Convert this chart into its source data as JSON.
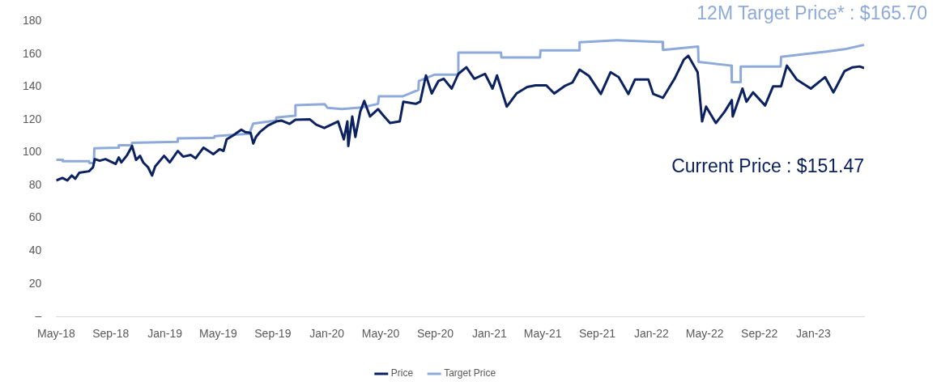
{
  "chart_data": {
    "type": "line",
    "legend": "bottom",
    "grid": false,
    "marker": "none",
    "line_style": "solid",
    "xlim": [
      "2018-05-01",
      "2023-04-25"
    ],
    "xticks": [
      {
        "value": "2018-05-01",
        "label": "May-18"
      },
      {
        "value": "2018-09-01",
        "label": "Sep-18"
      },
      {
        "value": "2019-01-01",
        "label": "Jan-19"
      },
      {
        "value": "2019-05-01",
        "label": "May-19"
      },
      {
        "value": "2019-09-01",
        "label": "Sep-19"
      },
      {
        "value": "2020-01-01",
        "label": "Jan-20"
      },
      {
        "value": "2020-05-01",
        "label": "May-20"
      },
      {
        "value": "2020-09-01",
        "label": "Sep-20"
      },
      {
        "value": "2021-01-01",
        "label": "Jan-21"
      },
      {
        "value": "2021-05-01",
        "label": "May-21"
      },
      {
        "value": "2021-09-01",
        "label": "Sep-21"
      },
      {
        "value": "2022-01-01",
        "label": "Jan-22"
      },
      {
        "value": "2022-05-01",
        "label": "May-22"
      },
      {
        "value": "2022-09-01",
        "label": "Sep-22"
      },
      {
        "value": "2023-01-01",
        "label": "Jan-23"
      }
    ],
    "ylim": [
      0,
      180
    ],
    "yticks": [
      {
        "value": 0,
        "label": "–"
      },
      20,
      40,
      60,
      80,
      100,
      120,
      140,
      160,
      180
    ],
    "series": [
      {
        "name": "Price",
        "color": "#0b2160",
        "x": [
          "2018-05-01",
          "2018-05-15",
          "2018-05-26",
          "2018-06-05",
          "2018-06-13",
          "2018-06-22",
          "2018-07-14",
          "2018-07-23",
          "2018-07-27",
          "2018-08-07",
          "2018-08-20",
          "2018-09-12",
          "2018-09-19",
          "2018-09-25",
          "2018-10-08",
          "2018-10-19",
          "2018-10-28",
          "2018-11-06",
          "2018-11-13",
          "2018-11-24",
          "2018-12-03",
          "2018-12-10",
          "2018-12-30",
          "2019-01-12",
          "2019-01-30",
          "2019-02-11",
          "2019-02-28",
          "2019-03-11",
          "2019-03-29",
          "2019-04-20",
          "2019-05-04",
          "2019-05-13",
          "2019-05-20",
          "2019-06-04",
          "2019-06-22",
          "2019-07-01",
          "2019-07-13",
          "2019-07-19",
          "2019-07-25",
          "2019-08-03",
          "2019-08-21",
          "2019-09-09",
          "2019-09-21",
          "2019-10-09",
          "2019-10-22",
          "2019-11-23",
          "2019-12-08",
          "2019-12-26",
          "2020-01-26",
          "2020-02-08",
          "2020-02-16",
          "2020-02-18",
          "2020-02-27",
          "2020-03-05",
          "2020-03-16",
          "2020-03-25",
          "2020-04-07",
          "2020-04-25",
          "2020-05-07",
          "2020-05-22",
          "2020-06-13",
          "2020-06-21",
          "2020-07-19",
          "2020-07-29",
          "2020-08-11",
          "2020-08-24",
          "2020-09-08",
          "2020-09-20",
          "2020-10-08",
          "2020-10-23",
          "2020-11-10",
          "2020-11-28",
          "2020-12-22",
          "2021-01-08",
          "2021-01-18",
          "2021-02-09",
          "2021-03-03",
          "2021-03-27",
          "2021-04-15",
          "2021-05-09",
          "2021-05-27",
          "2021-06-19",
          "2021-07-07",
          "2021-07-23",
          "2021-08-13",
          "2021-09-09",
          "2021-10-01",
          "2021-10-19",
          "2021-11-10",
          "2021-11-25",
          "2021-12-25",
          "2022-01-05",
          "2022-01-27",
          "2022-02-22",
          "2022-03-15",
          "2022-03-25",
          "2022-04-15",
          "2022-04-25",
          "2022-05-04",
          "2022-05-26",
          "2022-06-15",
          "2022-07-01",
          "2022-07-03",
          "2022-07-25",
          "2022-08-03",
          "2022-08-18",
          "2022-09-14",
          "2022-10-02",
          "2022-10-20",
          "2022-11-02",
          "2022-11-24",
          "2022-12-26",
          "2023-01-27",
          "2023-02-15",
          "2023-03-12",
          "2023-03-30",
          "2023-04-15",
          "2023-04-25"
        ],
        "values": [
          83,
          84.5,
          83,
          86,
          84,
          87.7,
          88.6,
          91,
          96,
          95,
          96,
          93,
          97,
          94,
          98.5,
          104,
          95.5,
          98,
          94,
          91,
          86,
          91.5,
          98,
          94,
          101,
          97.5,
          98.5,
          96.5,
          103,
          99,
          102,
          101,
          108,
          110.5,
          114,
          112.5,
          112,
          105.5,
          109.5,
          112.5,
          116.5,
          119,
          119.5,
          117.5,
          120,
          120.3,
          117,
          115,
          119,
          108,
          119,
          104,
          122,
          109.5,
          125,
          131.5,
          122,
          126.5,
          122.6,
          118,
          119,
          131,
          129.7,
          131,
          147,
          136,
          143.6,
          145,
          139,
          148,
          152,
          145,
          148,
          139,
          147,
          128,
          136,
          140,
          141,
          141,
          136,
          140.5,
          142.7,
          150.6,
          146.8,
          135.7,
          149,
          146,
          135.7,
          144.6,
          144.6,
          135.7,
          133.4,
          145,
          156.7,
          159,
          149,
          119,
          128,
          118,
          125,
          132,
          122,
          139,
          131,
          136.7,
          128.7,
          140.4,
          140.4,
          153,
          144.6,
          139,
          146,
          136.7,
          149.7,
          152,
          152.5,
          151.5
        ]
      },
      {
        "name": "Target Price",
        "color": "#8eaadb",
        "x": [
          "2018-05-01",
          "2018-05-15",
          "2018-05-16",
          "2018-07-14",
          "2018-07-15",
          "2018-07-25",
          "2018-07-26",
          "2018-09-18",
          "2018-09-19",
          "2018-10-18",
          "2018-10-19",
          "2019-01-29",
          "2019-01-30",
          "2019-04-22",
          "2019-04-23",
          "2019-07-10",
          "2019-07-19",
          "2019-09-08",
          "2019-09-09",
          "2019-10-21",
          "2019-10-22",
          "2019-12-27",
          "2020-01-02",
          "2020-02-04",
          "2020-03-20",
          "2020-04-25",
          "2020-04-27",
          "2020-06-19",
          "2020-07-25",
          "2020-07-26",
          "2020-08-30",
          "2020-10-22",
          "2020-10-23",
          "2021-01-27",
          "2021-01-28",
          "2021-04-25",
          "2021-04-26",
          "2021-07-22",
          "2021-07-23",
          "2021-10-15",
          "2022-01-15",
          "2022-01-26",
          "2022-01-27",
          "2022-04-16",
          "2022-04-17",
          "2022-06-30",
          "2022-07-01",
          "2022-07-20",
          "2022-07-21",
          "2022-10-19",
          "2022-10-20",
          "2023-01-27",
          "2023-03-12",
          "2023-04-25"
        ],
        "values": [
          95.6,
          95.6,
          94.7,
          94.7,
          93.6,
          93.6,
          102.6,
          103,
          104.5,
          104.5,
          105.9,
          106.5,
          108.7,
          109,
          110,
          111.5,
          117.7,
          119.5,
          121.4,
          122.5,
          128.9,
          129.5,
          127.3,
          126.5,
          127.5,
          129.7,
          134.3,
          134.3,
          138.2,
          143.6,
          147.5,
          147.5,
          160.9,
          160.9,
          158,
          158,
          162.3,
          162.3,
          167.3,
          168.5,
          167.5,
          167.5,
          162.6,
          164.6,
          155.3,
          153,
          142.9,
          142.9,
          152.5,
          152.5,
          158.4,
          161.5,
          163,
          165.7
        ]
      }
    ],
    "annotations": [
      "12M Target Price* : $165.70",
      "Current Price : $151.47"
    ]
  }
}
